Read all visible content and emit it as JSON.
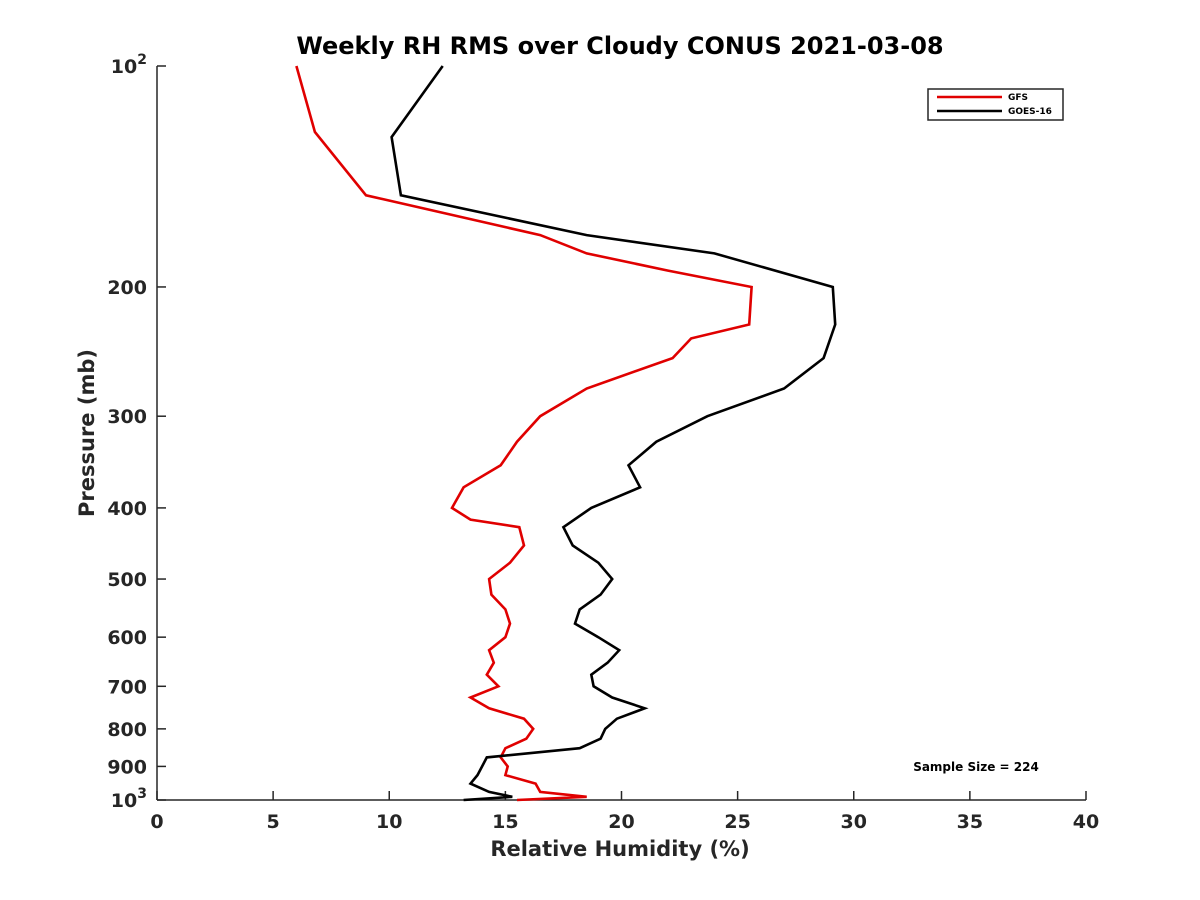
{
  "chart_data": {
    "type": "line",
    "title": "Weekly RH RMS over Cloudy CONUS 2021-03-08",
    "xlabel": "Relative Humidity (%)",
    "ylabel": "Pressure (mb)",
    "xlim": [
      0,
      40
    ],
    "ylim": [
      100,
      1000
    ],
    "yscale": "log",
    "y_reversed": true,
    "grid": false,
    "legend_position": "top-right",
    "x_ticks": [
      0,
      5,
      10,
      15,
      20,
      25,
      30,
      35,
      40
    ],
    "y_ticks": [
      {
        "value": 100,
        "label": "10",
        "exp": "2"
      },
      {
        "value": 200,
        "label": "200"
      },
      {
        "value": 300,
        "label": "300"
      },
      {
        "value": 400,
        "label": "400"
      },
      {
        "value": 500,
        "label": "500"
      },
      {
        "value": 600,
        "label": "600"
      },
      {
        "value": 700,
        "label": "700"
      },
      {
        "value": 800,
        "label": "800"
      },
      {
        "value": 900,
        "label": "900"
      },
      {
        "value": 1000,
        "label": "10",
        "exp": "3"
      }
    ],
    "annotation": "Sample Size = 224",
    "series": [
      {
        "name": "GFS",
        "color": "#e00000",
        "points": [
          [
            6.0,
            100
          ],
          [
            6.8,
            123
          ],
          [
            9.0,
            150
          ],
          [
            16.5,
            170
          ],
          [
            18.5,
            180
          ],
          [
            22.0,
            190
          ],
          [
            25.6,
            200
          ],
          [
            25.5,
            225
          ],
          [
            23.0,
            235
          ],
          [
            22.2,
            250
          ],
          [
            18.5,
            275
          ],
          [
            16.5,
            300
          ],
          [
            15.5,
            325
          ],
          [
            14.8,
            350
          ],
          [
            13.2,
            375
          ],
          [
            12.7,
            400
          ],
          [
            13.5,
            415
          ],
          [
            15.6,
            425
          ],
          [
            15.8,
            450
          ],
          [
            15.2,
            475
          ],
          [
            14.3,
            500
          ],
          [
            14.4,
            525
          ],
          [
            15.0,
            550
          ],
          [
            15.2,
            575
          ],
          [
            15.0,
            600
          ],
          [
            14.3,
            625
          ],
          [
            14.5,
            650
          ],
          [
            14.2,
            675
          ],
          [
            14.7,
            700
          ],
          [
            13.5,
            725
          ],
          [
            14.3,
            750
          ],
          [
            15.8,
            775
          ],
          [
            16.2,
            800
          ],
          [
            15.9,
            825
          ],
          [
            15.0,
            850
          ],
          [
            14.8,
            875
          ],
          [
            15.1,
            900
          ],
          [
            15.0,
            925
          ],
          [
            16.3,
            950
          ],
          [
            16.5,
            975
          ],
          [
            18.5,
            990
          ],
          [
            15.5,
            1000
          ]
        ]
      },
      {
        "name": "GOES-16",
        "color": "#000000",
        "points": [
          [
            12.3,
            100
          ],
          [
            10.1,
            125
          ],
          [
            10.5,
            150
          ],
          [
            18.5,
            170
          ],
          [
            24.0,
            180
          ],
          [
            29.1,
            200
          ],
          [
            29.2,
            225
          ],
          [
            28.7,
            250
          ],
          [
            27.0,
            275
          ],
          [
            23.7,
            300
          ],
          [
            21.5,
            325
          ],
          [
            20.3,
            350
          ],
          [
            20.8,
            375
          ],
          [
            18.7,
            400
          ],
          [
            17.5,
            425
          ],
          [
            17.9,
            450
          ],
          [
            19.0,
            475
          ],
          [
            19.6,
            500
          ],
          [
            19.1,
            525
          ],
          [
            18.2,
            550
          ],
          [
            18.0,
            575
          ],
          [
            19.0,
            600
          ],
          [
            19.9,
            625
          ],
          [
            19.4,
            650
          ],
          [
            18.7,
            675
          ],
          [
            18.8,
            700
          ],
          [
            19.6,
            725
          ],
          [
            21.0,
            750
          ],
          [
            19.8,
            775
          ],
          [
            19.3,
            800
          ],
          [
            19.1,
            825
          ],
          [
            18.2,
            850
          ],
          [
            14.2,
            875
          ],
          [
            14.0,
            900
          ],
          [
            13.8,
            925
          ],
          [
            13.5,
            950
          ],
          [
            14.3,
            975
          ],
          [
            15.3,
            990
          ],
          [
            13.2,
            1000
          ]
        ]
      }
    ]
  }
}
